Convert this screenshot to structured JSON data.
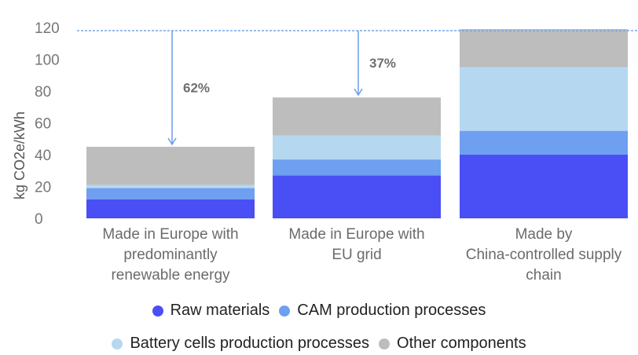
{
  "chart_data": {
    "type": "bar",
    "stacked": true,
    "ylabel": "kg CO2e/kWh",
    "ylim": [
      0,
      120
    ],
    "yticks": [
      0,
      20,
      40,
      60,
      80,
      100,
      120
    ],
    "categories": [
      [
        "Made in Europe with",
        "predominantly",
        "renewable energy"
      ],
      [
        "Made in Europe with",
        "EU grid"
      ],
      [
        "Made by",
        "China-controlled supply",
        "chain"
      ]
    ],
    "series": [
      {
        "name": "Raw materials",
        "color": "#4a4ef5",
        "values": [
          12,
          27,
          40
        ]
      },
      {
        "name": "CAM production processes",
        "color": "#6f9ff0",
        "values": [
          7,
          10,
          15
        ]
      },
      {
        "name": "Battery cells production processes",
        "color": "#b5d8f0",
        "values": [
          2,
          15,
          40
        ]
      },
      {
        "name": "Other components",
        "color": "#bdbdbd",
        "values": [
          24,
          24,
          24
        ]
      }
    ],
    "reference_line": {
      "value": 118,
      "color": "#6a9ee8"
    },
    "annotations": [
      {
        "category_index": 0,
        "label": "62%"
      },
      {
        "category_index": 1,
        "label": "37%"
      }
    ],
    "legend_position": "bottom"
  }
}
